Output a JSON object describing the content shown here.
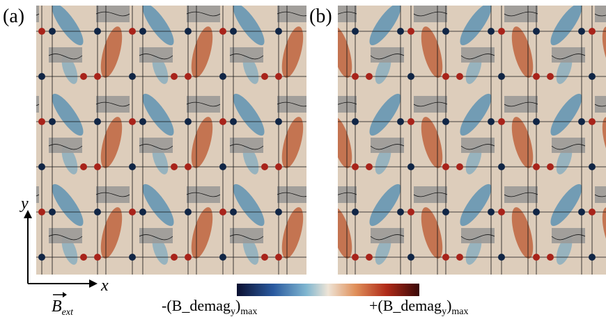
{
  "panels": [
    {
      "label": "(a)"
    },
    {
      "label": "(b)"
    }
  ],
  "axes": {
    "y": "y",
    "x": "x"
  },
  "field": {
    "symbol": "B",
    "sub": "ext"
  },
  "colorbar": {
    "min_label": {
      "text": "-(B_demag",
      "sub": "y",
      "tail": ")",
      "sub2": "max"
    },
    "max_label": {
      "text": "+(B_demag",
      "sub": "y",
      "tail": ")",
      "sub2": "max"
    }
  }
}
